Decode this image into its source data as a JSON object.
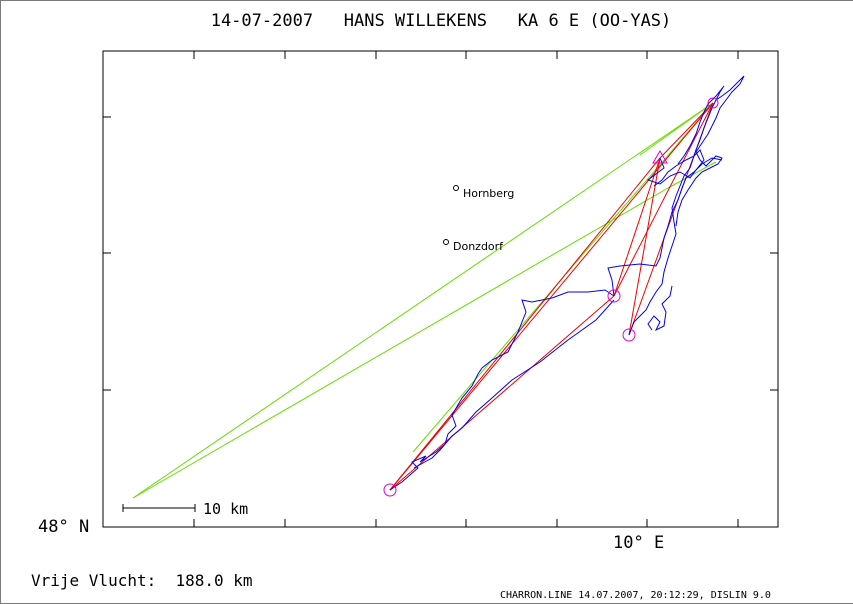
{
  "title": "14-07-2007   HANS WILLEKENS   KA 6 E (OO-YAS)",
  "axis": {
    "lat_label": "48° N",
    "lon_label": "10° E"
  },
  "places": [
    {
      "name": "Hornberg"
    },
    {
      "name": "Donzdorf"
    }
  ],
  "scale_label": "10 km",
  "footer": {
    "distance_text": "Vrije Vlucht:  188.0 km",
    "program_text": "CHARRON.LINE 14.07.2007, 20:12:29, DISLIN 9.0"
  },
  "colors": {
    "track": "#0000ee",
    "task_lines": "#ee0000",
    "sector_lines": "#66dd00",
    "turnpoints": "#dd00dd",
    "frame": "#000000"
  }
}
